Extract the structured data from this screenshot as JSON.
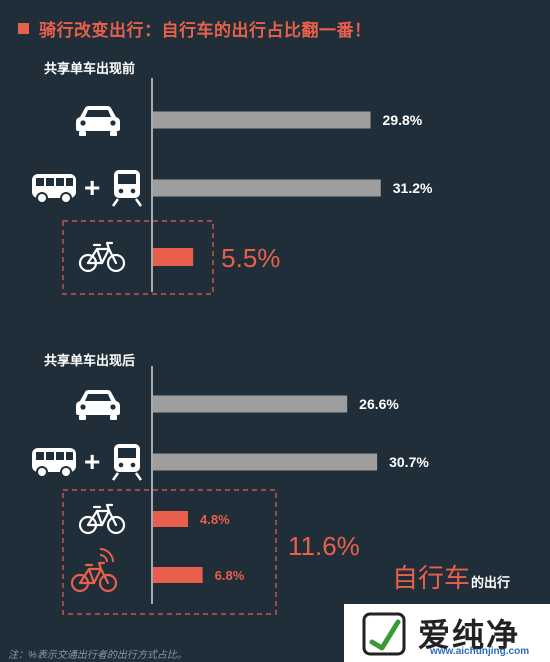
{
  "title": "骑行改变出行：自行车的出行占比翻一番！",
  "note": "注：%表示交通出行者的出行方式占比。",
  "watermark": {
    "text": "爱纯净",
    "url": "www.aichunjing.com"
  },
  "colors": {
    "accent": "#e8604c",
    "bar_gray": "#9e9e9e",
    "background": "#1f2e38",
    "text": "#ffffff"
  },
  "chart_data": [
    {
      "type": "bar",
      "orientation": "horizontal",
      "title": "共享单车出现前",
      "categories": [
        "car-icon",
        "bus-plus-train-icon",
        "bike-icon"
      ],
      "values": [
        29.8,
        31.2,
        5.5
      ],
      "labels": [
        "29.8%",
        "31.2%",
        "5.5%"
      ],
      "highlight": [
        false,
        false,
        true
      ]
    },
    {
      "type": "bar",
      "orientation": "horizontal",
      "title": "共享单车出现后",
      "categories": [
        "car-icon",
        "bus-plus-train-icon",
        "bike-icon",
        "shared-bike-icon"
      ],
      "values": [
        26.6,
        30.7,
        4.8,
        6.8
      ],
      "labels": [
        "26.6%",
        "30.7%",
        "4.8%",
        "6.8%"
      ],
      "highlight": [
        false,
        false,
        true,
        true
      ],
      "group_total": {
        "value": 11.6,
        "label": "11.6%"
      },
      "group_caption_big": "自行车",
      "group_caption_small": "的出行"
    }
  ]
}
